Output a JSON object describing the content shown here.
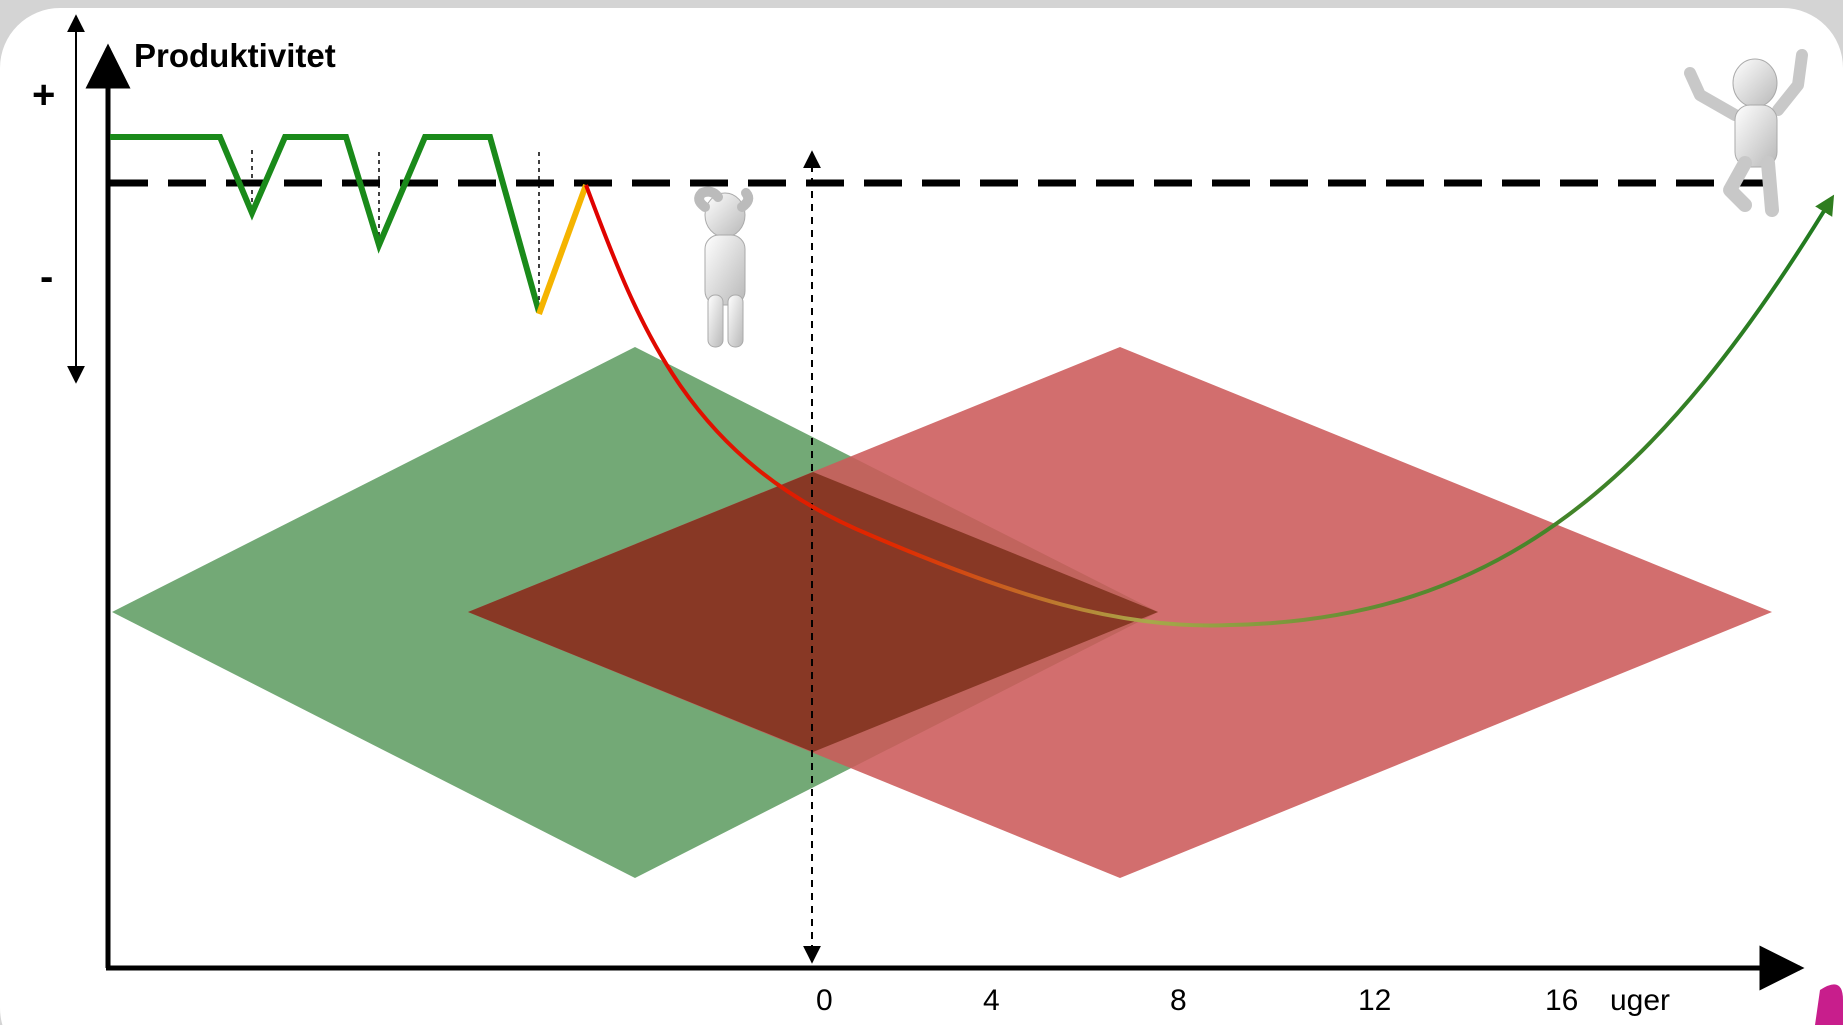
{
  "diagram": {
    "y_axis_label": "Produktivitet",
    "scale_plus": "+",
    "scale_minus": "-",
    "x_ticks": [
      "0",
      "4",
      "8",
      "12",
      "16"
    ],
    "x_unit": "uger",
    "colors": {
      "background": "#d4d4d4",
      "panel": "#ffffff",
      "productivity_line": "#1a8a1a",
      "warning_line": "#f5b400",
      "drop_curve": "#e00000",
      "recovery_curve": "#2f7d1f",
      "diamond_left": "#5a9a5e",
      "diamond_right": "#cc5a5a",
      "overlap": "#7b2e18"
    },
    "icons": [
      "confused-person-icon",
      "cheering-person-icon"
    ]
  }
}
